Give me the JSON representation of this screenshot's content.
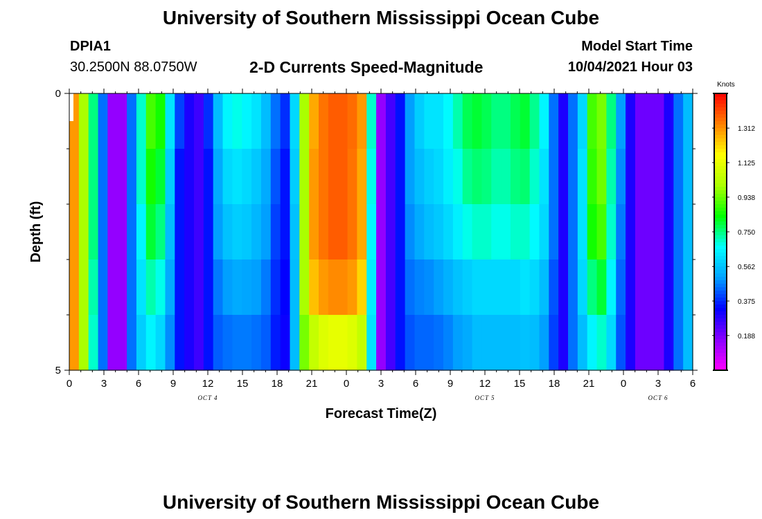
{
  "page": {
    "title_top": "University of Southern Mississippi Ocean Cube",
    "title_bottom": "University of Southern Mississippi Ocean Cube",
    "station_id": "DPIA1",
    "station_coords": "30.2500N  88.0750W",
    "plot_title": "2-D Currents Speed-Magnitude",
    "model_start_label": "Model Start Time",
    "model_start_value": "10/04/2021 Hour 03"
  },
  "colors": {
    "colormap": [
      "#ff00ff",
      "#8800ff",
      "#0000ff",
      "#00a0ff",
      "#00ffff",
      "#00ff00",
      "#aaff00",
      "#ffff00",
      "#ff8000",
      "#ff0000"
    ]
  },
  "chart_data": {
    "type": "heatmap",
    "xlabel": "Forecast Time(Z)",
    "ylabel": "Depth (ft)",
    "colorbar_label": "Knots",
    "x_tick_labels": [
      "0",
      "3",
      "6",
      "9",
      "12",
      "15",
      "18",
      "21",
      "0",
      "3",
      "6",
      "9",
      "12",
      "15",
      "18",
      "21",
      "0",
      "3",
      "6"
    ],
    "y_tick_labels": [
      "0",
      "5"
    ],
    "date_labels": [
      {
        "text": "OCT 4",
        "hour": 12
      },
      {
        "text": "OCT 5",
        "hour": 36
      },
      {
        "text": "OCT 6",
        "hour": 51
      }
    ],
    "xlim": [
      0,
      54
    ],
    "ylim": [
      0,
      5
    ],
    "colorbar_ticks": [
      "1.312",
      "1.125",
      "0.938",
      "0.750",
      "0.562",
      "0.375",
      "0.188"
    ],
    "colorbar_range": [
      0,
      1.5
    ],
    "depth_levels": 5,
    "speed_knots": [
      [
        1.3,
        1.0,
        0.75,
        0.45,
        0.15,
        0.15,
        0.45,
        0.7,
        0.9,
        0.85,
        0.62,
        0.4,
        0.3,
        0.26,
        0.38,
        0.55,
        0.65,
        0.68,
        0.65,
        0.62,
        0.55,
        0.45,
        0.38,
        0.6,
        1.0,
        1.28,
        1.35,
        1.38,
        1.38,
        1.36,
        1.3,
        0.7,
        0.15,
        0.25,
        0.35,
        0.5,
        0.58,
        0.62,
        0.62,
        0.66,
        0.72,
        0.78,
        0.8,
        0.78,
        0.75,
        0.75,
        0.78,
        0.8,
        0.74,
        0.65,
        0.45,
        0.3,
        0.45,
        0.6,
        0.9,
        0.95,
        0.75,
        0.5,
        0.3,
        0.2,
        0.2,
        0.2,
        0.3,
        0.45,
        0.55
      ],
      [
        1.3,
        1.0,
        0.75,
        0.45,
        0.15,
        0.15,
        0.45,
        0.7,
        0.85,
        0.8,
        0.58,
        0.35,
        0.3,
        0.26,
        0.35,
        0.52,
        0.6,
        0.62,
        0.6,
        0.57,
        0.52,
        0.42,
        0.35,
        0.58,
        1.0,
        1.3,
        1.35,
        1.38,
        1.38,
        1.35,
        1.28,
        0.68,
        0.15,
        0.25,
        0.35,
        0.5,
        0.55,
        0.58,
        0.6,
        0.64,
        0.68,
        0.74,
        0.76,
        0.75,
        0.72,
        0.72,
        0.75,
        0.76,
        0.7,
        0.62,
        0.45,
        0.3,
        0.45,
        0.62,
        0.88,
        0.94,
        0.72,
        0.48,
        0.3,
        0.2,
        0.2,
        0.2,
        0.3,
        0.45,
        0.55
      ],
      [
        1.3,
        1.0,
        0.75,
        0.45,
        0.15,
        0.15,
        0.45,
        0.65,
        0.8,
        0.75,
        0.55,
        0.35,
        0.3,
        0.26,
        0.35,
        0.5,
        0.56,
        0.58,
        0.57,
        0.54,
        0.5,
        0.4,
        0.35,
        0.56,
        1.0,
        1.3,
        1.35,
        1.38,
        1.38,
        1.35,
        1.28,
        0.66,
        0.15,
        0.25,
        0.35,
        0.48,
        0.52,
        0.55,
        0.57,
        0.6,
        0.64,
        0.68,
        0.7,
        0.7,
        0.68,
        0.68,
        0.7,
        0.7,
        0.66,
        0.6,
        0.45,
        0.3,
        0.45,
        0.62,
        0.85,
        0.9,
        0.7,
        0.46,
        0.3,
        0.2,
        0.2,
        0.2,
        0.3,
        0.45,
        0.55
      ],
      [
        1.3,
        1.0,
        0.72,
        0.45,
        0.15,
        0.15,
        0.45,
        0.62,
        0.72,
        0.68,
        0.52,
        0.35,
        0.3,
        0.26,
        0.35,
        0.46,
        0.5,
        0.52,
        0.51,
        0.5,
        0.46,
        0.38,
        0.33,
        0.55,
        1.0,
        1.25,
        1.3,
        1.32,
        1.32,
        1.3,
        1.22,
        0.64,
        0.15,
        0.25,
        0.35,
        0.45,
        0.47,
        0.48,
        0.5,
        0.53,
        0.56,
        0.58,
        0.6,
        0.6,
        0.6,
        0.6,
        0.6,
        0.62,
        0.6,
        0.55,
        0.42,
        0.3,
        0.45,
        0.6,
        0.75,
        0.8,
        0.65,
        0.44,
        0.3,
        0.2,
        0.2,
        0.2,
        0.3,
        0.45,
        0.55
      ],
      [
        1.3,
        1.0,
        0.7,
        0.45,
        0.15,
        0.15,
        0.45,
        0.58,
        0.65,
        0.6,
        0.48,
        0.35,
        0.3,
        0.26,
        0.35,
        0.43,
        0.45,
        0.46,
        0.46,
        0.45,
        0.43,
        0.36,
        0.32,
        0.55,
        0.95,
        1.05,
        1.1,
        1.12,
        1.12,
        1.1,
        1.05,
        0.62,
        0.15,
        0.25,
        0.35,
        0.42,
        0.44,
        0.44,
        0.45,
        0.47,
        0.5,
        0.52,
        0.55,
        0.55,
        0.55,
        0.55,
        0.55,
        0.56,
        0.55,
        0.5,
        0.4,
        0.3,
        0.45,
        0.55,
        0.65,
        0.7,
        0.6,
        0.42,
        0.3,
        0.2,
        0.2,
        0.2,
        0.3,
        0.45,
        0.55
      ]
    ]
  }
}
